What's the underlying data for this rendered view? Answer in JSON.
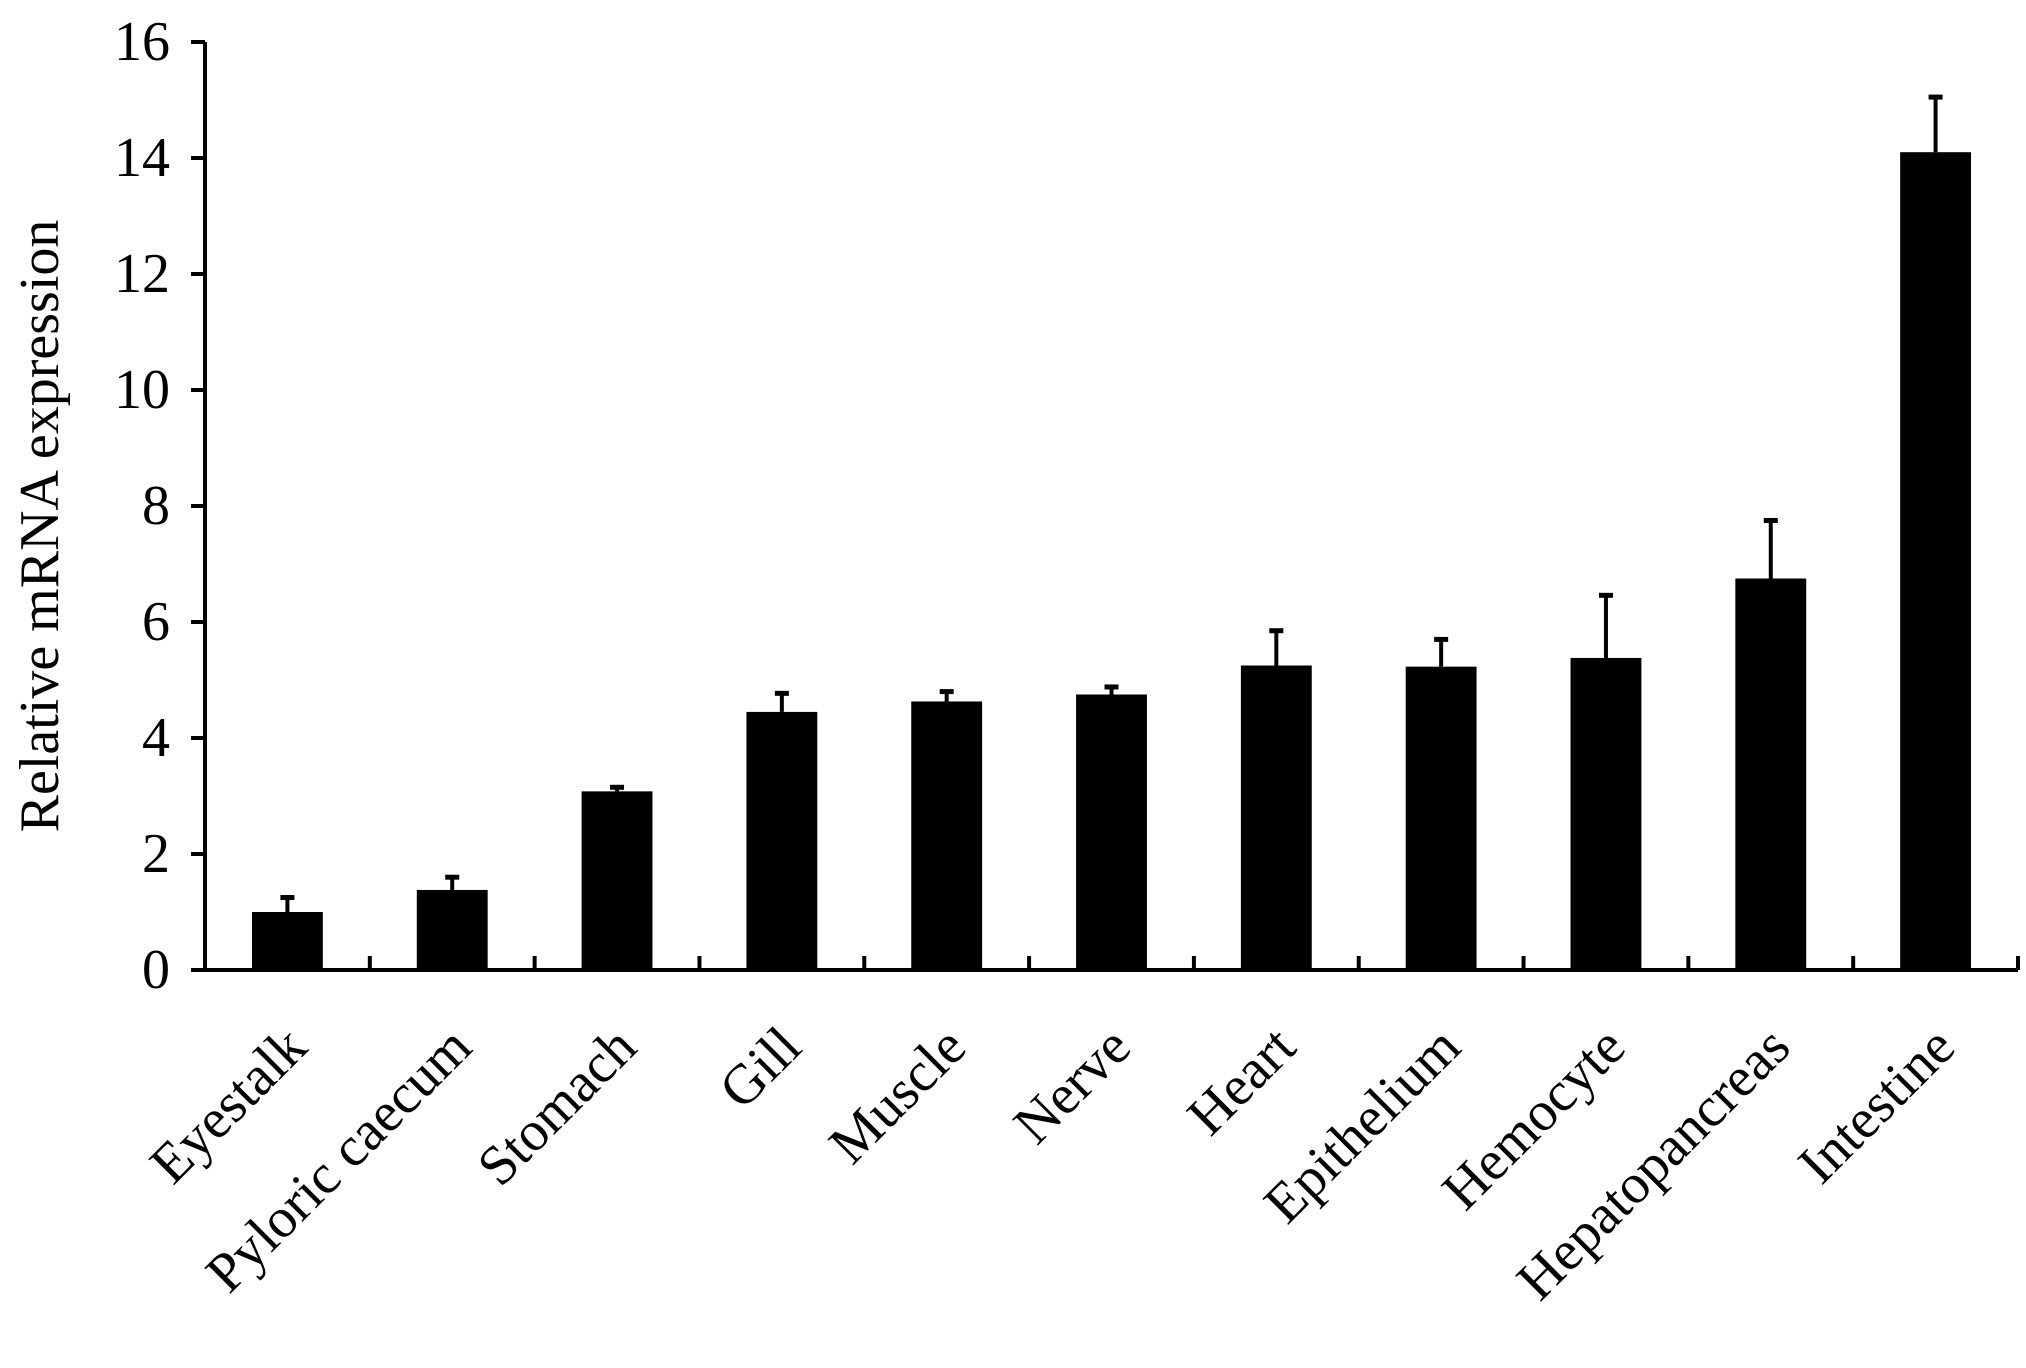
{
  "chart_data": {
    "type": "bar",
    "title": "",
    "xlabel": "",
    "ylabel": "Relative mRNA expression",
    "ylim": [
      0,
      16
    ],
    "yticks": [
      0,
      2,
      4,
      6,
      8,
      10,
      12,
      14,
      16
    ],
    "grid": false,
    "legend": "none",
    "bar_color": "#000000",
    "categories": [
      "Eyestalk",
      "Pyloric caecum",
      "Stomach",
      "Gill",
      "Muscle",
      "Nerve",
      "Heart",
      "Epithelium",
      "Hemocyte",
      "Hepatopancreas",
      "Intestine"
    ],
    "series": [
      {
        "values": [
          1.0,
          1.38,
          3.08,
          4.45,
          4.63,
          4.75,
          5.25,
          5.23,
          5.38,
          6.75,
          14.1
        ],
        "error": [
          0.25,
          0.22,
          0.07,
          0.32,
          0.17,
          0.13,
          0.6,
          0.47,
          1.08,
          1.0,
          0.95
        ]
      }
    ]
  }
}
